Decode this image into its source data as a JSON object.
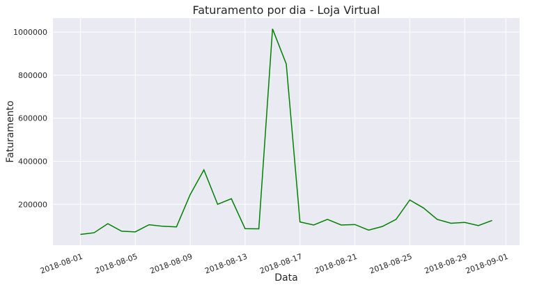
{
  "chart_data": {
    "type": "line",
    "title": "Faturamento por dia - Loja Virtual",
    "xlabel": "Data",
    "ylabel": "Faturamento",
    "x": [
      "2018-08-01",
      "2018-08-02",
      "2018-08-03",
      "2018-08-04",
      "2018-08-05",
      "2018-08-06",
      "2018-08-07",
      "2018-08-08",
      "2018-08-09",
      "2018-08-10",
      "2018-08-11",
      "2018-08-12",
      "2018-08-13",
      "2018-08-14",
      "2018-08-15",
      "2018-08-16",
      "2018-08-17",
      "2018-08-18",
      "2018-08-19",
      "2018-08-20",
      "2018-08-21",
      "2018-08-22",
      "2018-08-23",
      "2018-08-24",
      "2018-08-25",
      "2018-08-26",
      "2018-08-27",
      "2018-08-28",
      "2018-08-29",
      "2018-08-30",
      "2018-08-31"
    ],
    "series": [
      {
        "color": "#008000",
        "values": [
          60000,
          68000,
          110000,
          75000,
          72000,
          105000,
          98000,
          95000,
          245000,
          360000,
          200000,
          226000,
          87000,
          86000,
          1015000,
          852000,
          118000,
          104000,
          130000,
          104000,
          106000,
          80000,
          97000,
          130000,
          220000,
          183000,
          130000,
          112000,
          116000,
          101000,
          125000
        ]
      }
    ],
    "x_ticks": [
      "2018-08-01",
      "2018-08-05",
      "2018-08-09",
      "2018-08-13",
      "2018-08-17",
      "2018-08-21",
      "2018-08-25",
      "2018-08-29",
      "2018-09-01"
    ],
    "y_ticks": [
      "200000",
      "400000",
      "600000",
      "800000",
      "1000000"
    ],
    "xlim": [
      "2018-07-30",
      "2018-09-02"
    ],
    "ylim": [
      10000,
      1065000
    ],
    "grid": true,
    "background": "#eaeaf2"
  }
}
